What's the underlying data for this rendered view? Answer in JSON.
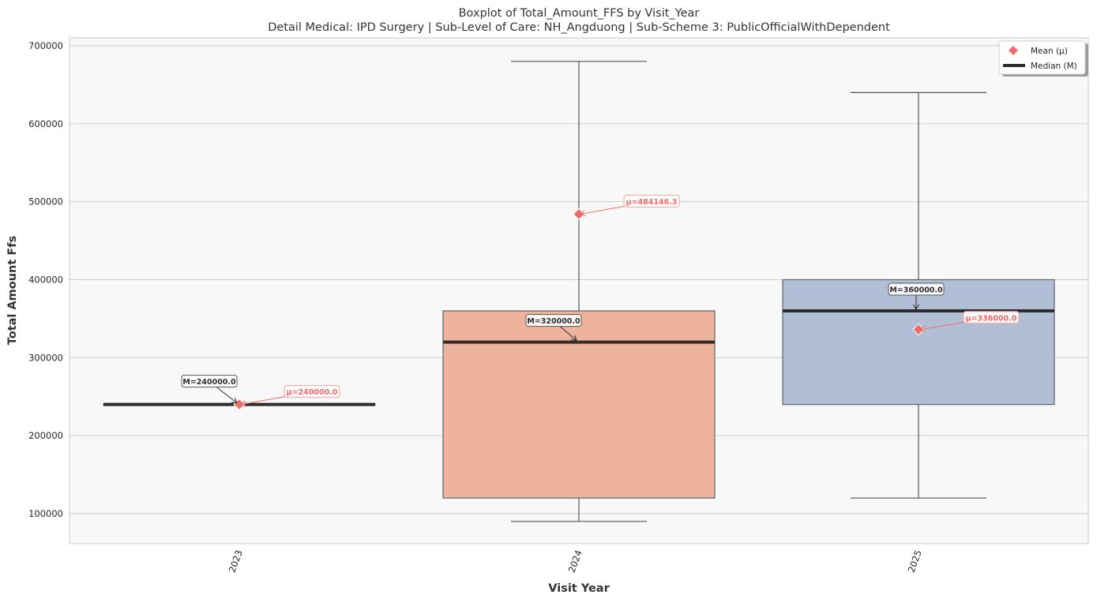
{
  "chart_data": {
    "type": "box",
    "title": "Boxplot of Total_Amount_FFS by Visit_Year",
    "subtitle": "Detail Medical: IPD Surgery | Sub-Level of Care: NH_Angduong | Sub-Scheme 3: PublicOfficialWithDependent",
    "xlabel": "Visit Year",
    "ylabel": "Total Amount Ffs",
    "ylim": [
      60000,
      710000
    ],
    "yticks": [
      100000,
      200000,
      300000,
      400000,
      500000,
      600000,
      700000
    ],
    "ytick_labels": [
      "100000",
      "200000",
      "300000",
      "400000",
      "500000",
      "600000",
      "700000"
    ],
    "grid": true,
    "legend_position": "top-right",
    "legend": [
      {
        "label": "Mean (μ)",
        "marker": "diamond",
        "color": "#f26b6b"
      },
      {
        "label": "Median (M)",
        "marker": "line",
        "color": "#2d2d2d"
      }
    ],
    "categories": [
      "2023",
      "2024",
      "2025"
    ],
    "boxes": [
      {
        "category": "2023",
        "whisker_low": 240000,
        "q1": 240000,
        "median": 240000,
        "q3": 240000,
        "whisker_high": 240000,
        "mean": 240000,
        "color": "#b2bdd6",
        "median_label": "M=240000.0",
        "mean_label": "μ=240000.0"
      },
      {
        "category": "2024",
        "whisker_low": 90000,
        "q1": 120000,
        "median": 320000,
        "q3": 360000,
        "whisker_high": 680000,
        "mean": 484146.3,
        "color": "#edb39c",
        "median_label": "M=320000.0",
        "mean_label": "μ=484146.3"
      },
      {
        "category": "2025",
        "whisker_low": 120000,
        "q1": 240000,
        "median": 360000,
        "q3": 400000,
        "whisker_high": 640000,
        "mean": 336000,
        "color": "#b2bdd6",
        "median_label": "M=360000.0",
        "mean_label": "μ=336000.0"
      }
    ],
    "colors": {
      "plot_bg": "#f8f8f8",
      "grid": "#cccccc",
      "mean": "#f26b6b",
      "median": "#2d2d2d",
      "whisker": "#5f6466"
    }
  }
}
